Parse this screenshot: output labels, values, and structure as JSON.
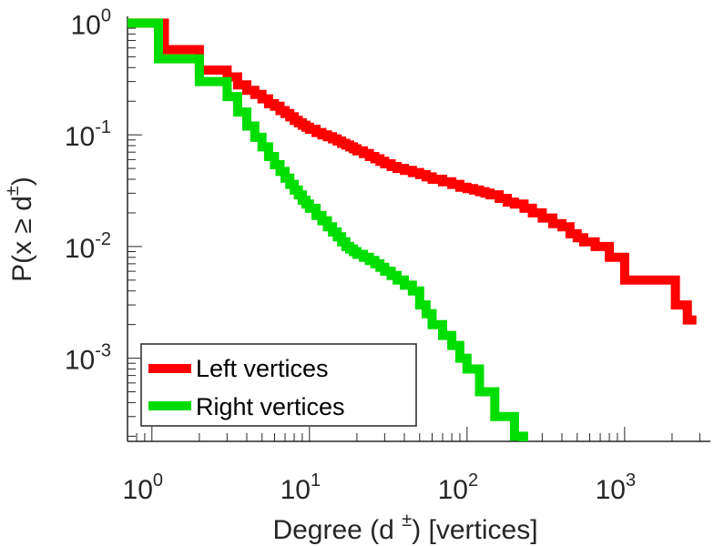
{
  "chart_data": {
    "type": "line",
    "line_shape": "step",
    "xscale": "log",
    "yscale": "log",
    "xlabel": {
      "main": "Degree (d ",
      "sup": "±",
      "tail": ") [vertices]"
    },
    "ylabel": {
      "main": "P(x ≥ d",
      "sup": "±",
      "tail": ")"
    },
    "xlim": [
      0.7,
      3500
    ],
    "ylim": [
      0.00018,
      1.15
    ],
    "xticks": [
      {
        "value": 1,
        "base": "10",
        "exp": "0"
      },
      {
        "value": 10,
        "base": "10",
        "exp": "1"
      },
      {
        "value": 100,
        "base": "10",
        "exp": "2"
      },
      {
        "value": 1000,
        "base": "10",
        "exp": "3"
      }
    ],
    "yticks": [
      {
        "value": 1,
        "base": "10",
        "exp": "0"
      },
      {
        "value": 0.1,
        "base": "10",
        "exp": "-1"
      },
      {
        "value": 0.01,
        "base": "10",
        "exp": "-2"
      },
      {
        "value": 0.001,
        "base": "10",
        "exp": "-3"
      }
    ],
    "grid": false,
    "legend_position": "bottom-left",
    "series": [
      {
        "name": "Left vertices",
        "color": "#ff0000",
        "x": [
          0.7,
          1.2,
          2,
          3,
          3.5,
          4,
          4.5,
          5,
          5.5,
          6,
          6.5,
          7,
          7.5,
          8,
          8.5,
          9,
          9.5,
          10,
          11,
          12,
          13,
          14,
          15,
          16,
          17,
          18,
          19,
          20,
          22,
          24,
          26,
          28,
          30,
          33,
          36,
          40,
          45,
          50,
          55,
          60,
          70,
          80,
          90,
          100,
          110,
          120,
          130,
          140,
          160,
          180,
          200,
          230,
          260,
          300,
          350,
          400,
          450,
          500,
          550,
          650,
          800,
          1000,
          1300,
          1700,
          2100,
          2500
        ],
        "y": [
          1,
          0.58,
          0.38,
          0.33,
          0.28,
          0.25,
          0.23,
          0.21,
          0.19,
          0.18,
          0.165,
          0.155,
          0.145,
          0.135,
          0.128,
          0.122,
          0.117,
          0.112,
          0.105,
          0.1,
          0.096,
          0.092,
          0.088,
          0.084,
          0.081,
          0.078,
          0.075,
          0.072,
          0.068,
          0.064,
          0.061,
          0.058,
          0.055,
          0.052,
          0.05,
          0.048,
          0.046,
          0.044,
          0.042,
          0.04,
          0.038,
          0.036,
          0.034,
          0.033,
          0.032,
          0.031,
          0.03,
          0.029,
          0.027,
          0.025,
          0.024,
          0.022,
          0.02,
          0.018,
          0.016,
          0.015,
          0.013,
          0.012,
          0.011,
          0.01,
          0.008,
          0.005,
          0.005,
          0.005,
          0.003,
          0.0022
        ]
      },
      {
        "name": "Right vertices",
        "color": "#00dd00",
        "x": [
          0.7,
          1.1,
          2,
          3,
          3.5,
          4,
          4.5,
          5,
          5.5,
          6,
          6.5,
          7,
          7.5,
          8,
          8.5,
          9,
          9.5,
          10,
          11,
          12,
          13,
          14,
          15,
          16,
          17,
          18,
          19,
          20,
          22,
          24,
          26,
          28,
          30,
          33,
          36,
          40,
          45,
          50,
          55,
          60,
          70,
          80,
          90,
          100,
          120,
          150,
          200
        ],
        "y": [
          1,
          0.48,
          0.3,
          0.22,
          0.16,
          0.12,
          0.095,
          0.078,
          0.064,
          0.054,
          0.047,
          0.041,
          0.036,
          0.032,
          0.029,
          0.026,
          0.024,
          0.022,
          0.019,
          0.017,
          0.015,
          0.0135,
          0.0122,
          0.011,
          0.01,
          0.0095,
          0.009,
          0.0085,
          0.008,
          0.0075,
          0.007,
          0.0065,
          0.006,
          0.0055,
          0.005,
          0.0045,
          0.004,
          0.003,
          0.0025,
          0.002,
          0.0016,
          0.0013,
          0.001,
          0.0008,
          0.0005,
          0.0003,
          0.0002
        ]
      }
    ]
  }
}
